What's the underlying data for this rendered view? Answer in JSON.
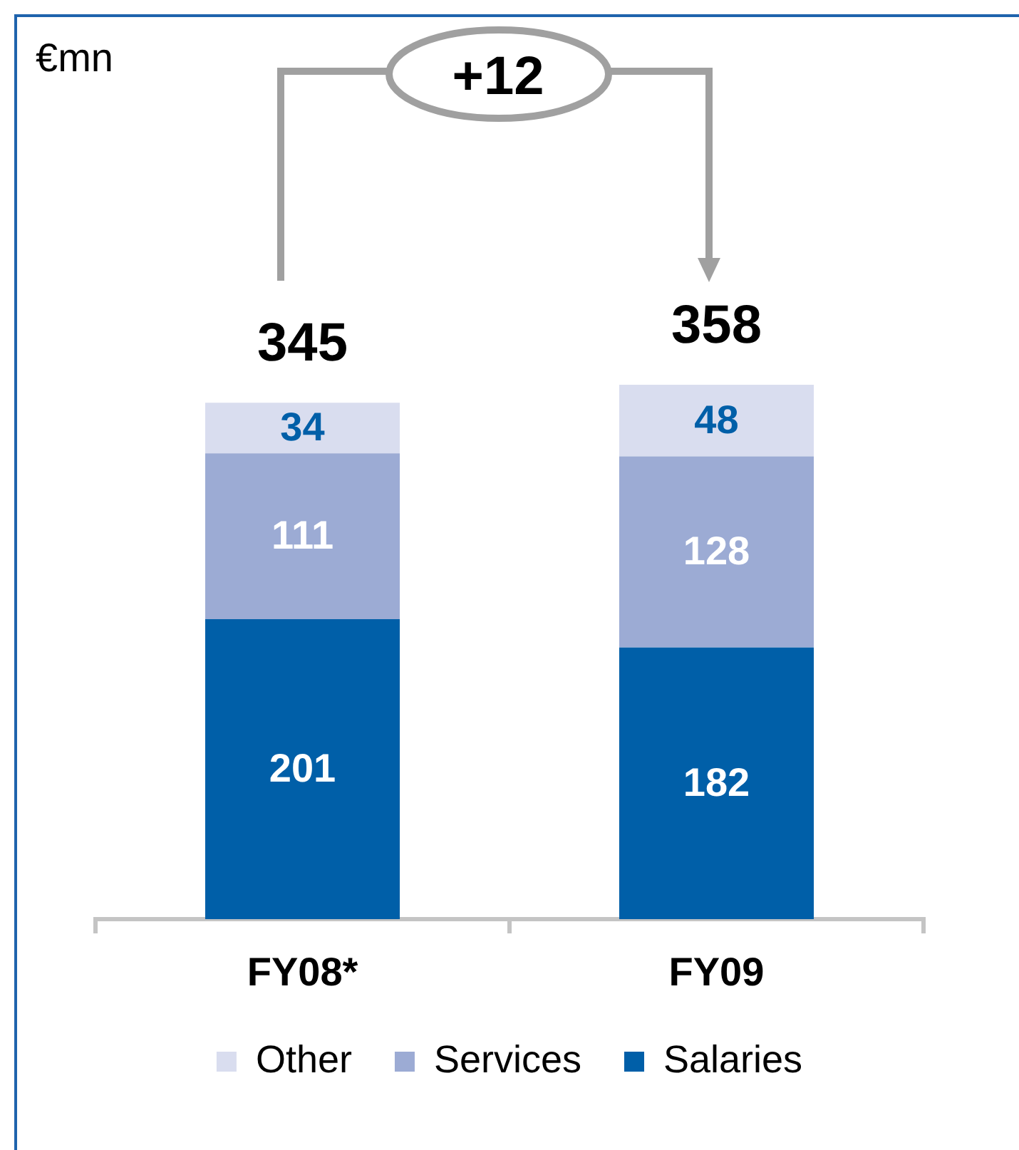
{
  "chart_data": {
    "type": "bar",
    "categories": [
      "FY08*",
      "FY09"
    ],
    "stacked": true,
    "series": [
      {
        "name": "Salaries",
        "color": "#005fa8",
        "values": [
          201,
          182
        ]
      },
      {
        "name": "Services",
        "color": "#9cabd4",
        "values": [
          111,
          128
        ]
      },
      {
        "name": "Other",
        "color": "#d9ddef",
        "values": [
          34,
          48
        ]
      }
    ],
    "data_labels": true,
    "totals": [
      "345",
      "358"
    ],
    "annotations": [
      "€mn",
      "+12"
    ],
    "legend": "bottom",
    "grid": false
  }
}
